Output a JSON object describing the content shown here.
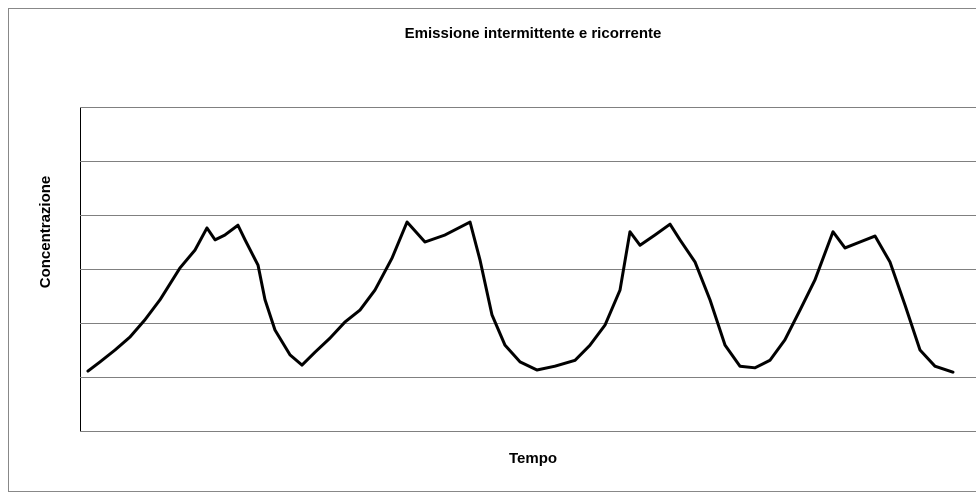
{
  "chart_data": {
    "type": "line",
    "title": "Emissione intermittente e ricorrente",
    "xlabel": "Tempo",
    "ylabel": "Concentrazione",
    "xlim": [
      0,
      100
    ],
    "ylim": [
      0,
      6
    ],
    "yticks": [
      0,
      1,
      2,
      3,
      4,
      5,
      6
    ],
    "grid": true,
    "series": [
      {
        "color": "#000000",
        "x": [
          0.89,
          2.23,
          3.91,
          5.58,
          7.25,
          8.93,
          11.16,
          12.83,
          14.17,
          15.07,
          16.18,
          17.63,
          18.42,
          19.87,
          20.65,
          21.76,
          23.44,
          24.78,
          26.23,
          27.9,
          29.58,
          31.25,
          32.92,
          34.82,
          36.5,
          38.5,
          40.74,
          43.53,
          44.64,
          45.98,
          47.43,
          49.11,
          51.0,
          53.01,
          55.25,
          56.92,
          58.59,
          60.27,
          61.38,
          62.5,
          64.17,
          65.85,
          66.96,
          68.64,
          70.31,
          71.99,
          73.66,
          75.33,
          77.01,
          78.68,
          80.36,
          82.03,
          84.04,
          85.38,
          87.05,
          88.73,
          90.4,
          92.08,
          93.75,
          95.42,
          97.43
        ],
        "values": [
          1.11,
          1.28,
          1.5,
          1.74,
          2.06,
          2.43,
          3.02,
          3.35,
          3.76,
          3.54,
          3.63,
          3.81,
          3.54,
          3.07,
          2.43,
          1.87,
          1.41,
          1.22,
          1.46,
          1.72,
          2.02,
          2.24,
          2.61,
          3.2,
          3.87,
          3.5,
          3.63,
          3.87,
          3.17,
          2.15,
          1.59,
          1.28,
          1.13,
          1.2,
          1.31,
          1.59,
          1.96,
          2.61,
          3.69,
          3.44,
          3.63,
          3.83,
          3.54,
          3.13,
          2.43,
          1.59,
          1.2,
          1.17,
          1.31,
          1.69,
          2.24,
          2.8,
          3.69,
          3.39,
          3.5,
          3.61,
          3.13,
          2.33,
          1.5,
          1.2,
          1.09
        ]
      }
    ]
  }
}
